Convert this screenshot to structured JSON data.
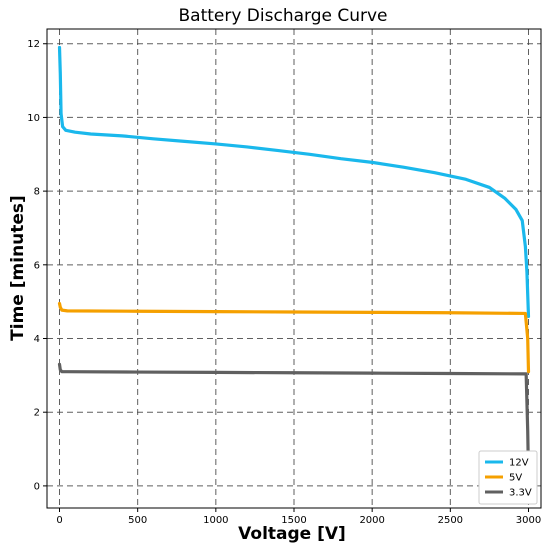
{
  "chart_data": {
    "type": "line",
    "title": "Battery Discharge Curve",
    "xlabel": "Voltage [V]",
    "ylabel": "Time [minutes]",
    "xlim": [
      -80,
      3080
    ],
    "ylim": [
      -0.6,
      12.4
    ],
    "xticks": [
      0,
      500,
      1000,
      1500,
      2000,
      2500,
      3000
    ],
    "yticks": [
      0,
      2,
      4,
      6,
      8,
      10,
      12
    ],
    "grid": true,
    "legend_position": "bottom-right",
    "series": [
      {
        "name": "12V",
        "color": "#1ab8ec",
        "x": [
          0,
          5,
          10,
          20,
          40,
          100,
          200,
          400,
          600,
          800,
          1000,
          1200,
          1400,
          1600,
          1800,
          2000,
          2200,
          2400,
          2600,
          2750,
          2850,
          2920,
          2960,
          2980,
          2990,
          2995,
          3000
        ],
        "y": [
          11.9,
          11.2,
          10.1,
          9.75,
          9.65,
          9.6,
          9.55,
          9.5,
          9.42,
          9.35,
          9.28,
          9.2,
          9.1,
          9.0,
          8.88,
          8.78,
          8.65,
          8.5,
          8.32,
          8.1,
          7.8,
          7.5,
          7.2,
          6.5,
          5.8,
          5.2,
          4.6
        ]
      },
      {
        "name": "5V",
        "color": "#f5a000",
        "x": [
          0,
          5,
          15,
          50,
          500,
          1000,
          1500,
          2000,
          2500,
          2980,
          2995,
          3000
        ],
        "y": [
          4.95,
          4.85,
          4.77,
          4.75,
          4.74,
          4.73,
          4.72,
          4.71,
          4.7,
          4.68,
          4.0,
          3.1
        ]
      },
      {
        "name": "3.3V",
        "color": "#606060",
        "x": [
          0,
          5,
          15,
          50,
          500,
          1000,
          1500,
          2000,
          2500,
          2985,
          2995,
          3000
        ],
        "y": [
          3.3,
          3.15,
          3.1,
          3.1,
          3.09,
          3.08,
          3.07,
          3.06,
          3.05,
          3.04,
          1.5,
          0.3
        ]
      }
    ]
  }
}
